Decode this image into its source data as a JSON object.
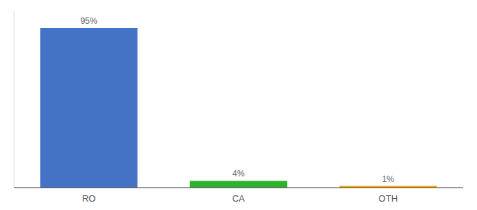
{
  "chart_data": {
    "type": "bar",
    "categories": [
      "RO",
      "CA",
      "OTH"
    ],
    "values": [
      95,
      4,
      1
    ],
    "value_labels": [
      "95%",
      "4%",
      "1%"
    ],
    "colors": [
      "#4472c4",
      "#2db22d",
      "#f0a500"
    ],
    "ylim": [
      0,
      105
    ],
    "data_labels": true,
    "tick_labels": "x",
    "grid": false
  }
}
